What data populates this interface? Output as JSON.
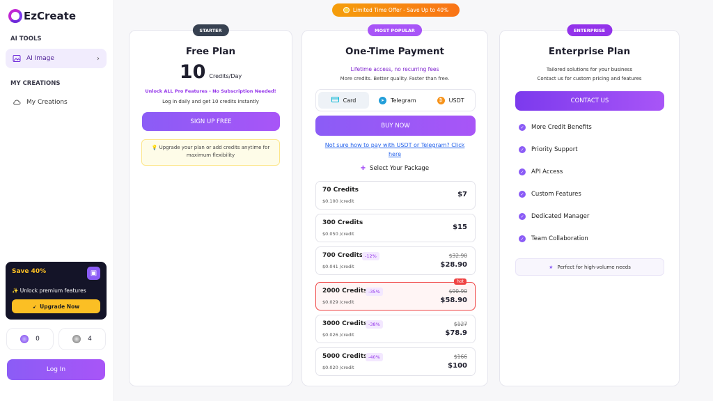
{
  "brand": {
    "name": "EzCreate"
  },
  "sidebar": {
    "ai_tools_label": "AI TOOLS",
    "ai_image_label": "AI Image",
    "my_creations_label": "MY CREATIONS",
    "my_creations_item": "My Creations"
  },
  "promo": {
    "title": "Save 40%",
    "feature": "Unlock premium features",
    "button": "Upgrade Now"
  },
  "stats": {
    "gems": "0",
    "coins": "4"
  },
  "login": "Log In",
  "banner": "Limited Time Offer - Save Up to 40%",
  "free": {
    "badge": "STARTER",
    "title": "Free Plan",
    "credits_num": "10",
    "credits_unit": "Credits/Day",
    "unlock": "Unlock ALL Pro Features - No Subscription Needed!",
    "login_note": "Log in daily and get 10 credits instantly",
    "button": "SIGN UP FREE",
    "tip": "Upgrade your plan or add credits anytime for maximum flexibility"
  },
  "onetime": {
    "badge": "MOST POPULAR",
    "title": "One-Time Payment",
    "lifetime": "Lifetime access, no recurring fees",
    "subtitle": "More credits. Better quality. Faster than free.",
    "tabs": [
      "Card",
      "Telegram",
      "USDT"
    ],
    "buy": "BUY NOW",
    "help_link": "Not sure how to pay with USDT or Telegram? Click here",
    "select_label": "Select Your Package",
    "packages": [
      {
        "name": "70 Credits",
        "per": "$0.100 /credit",
        "disc": "",
        "old": "",
        "price": "$7"
      },
      {
        "name": "300 Credits",
        "per": "$0.050 /credit",
        "disc": "",
        "old": "",
        "price": "$15"
      },
      {
        "name": "700 Credits",
        "per": "$0.041 /credit",
        "disc": "-12%",
        "old": "$32.90",
        "price": "$28.90"
      },
      {
        "name": "2000 Credits",
        "per": "$0.029 /credit",
        "disc": "-35%",
        "old": "$90.90",
        "price": "$58.90",
        "tag": "hot"
      },
      {
        "name": "3000 Credits",
        "per": "$0.026 /credit",
        "disc": "-38%",
        "old": "$127",
        "price": "$78.9"
      },
      {
        "name": "5000 Credits",
        "per": "$0.020 /credit",
        "disc": "-40%",
        "old": "$166",
        "price": "$100"
      }
    ]
  },
  "enterprise": {
    "badge": "ENTERPRISE",
    "title": "Enterprise Plan",
    "line1": "Tailored solutions for your business",
    "line2": "Contact us for custom pricing and features",
    "button": "CONTACT US",
    "features": [
      "More Credit Benefits",
      "Priority Support",
      "API Access",
      "Custom Features",
      "Dedicated Manager",
      "Team Collaboration"
    ],
    "note": "Perfect for high-volume needs"
  },
  "colors": {
    "accent": "#8b5cf6",
    "hot": "#ef4444",
    "promo": "#fbbf24"
  }
}
